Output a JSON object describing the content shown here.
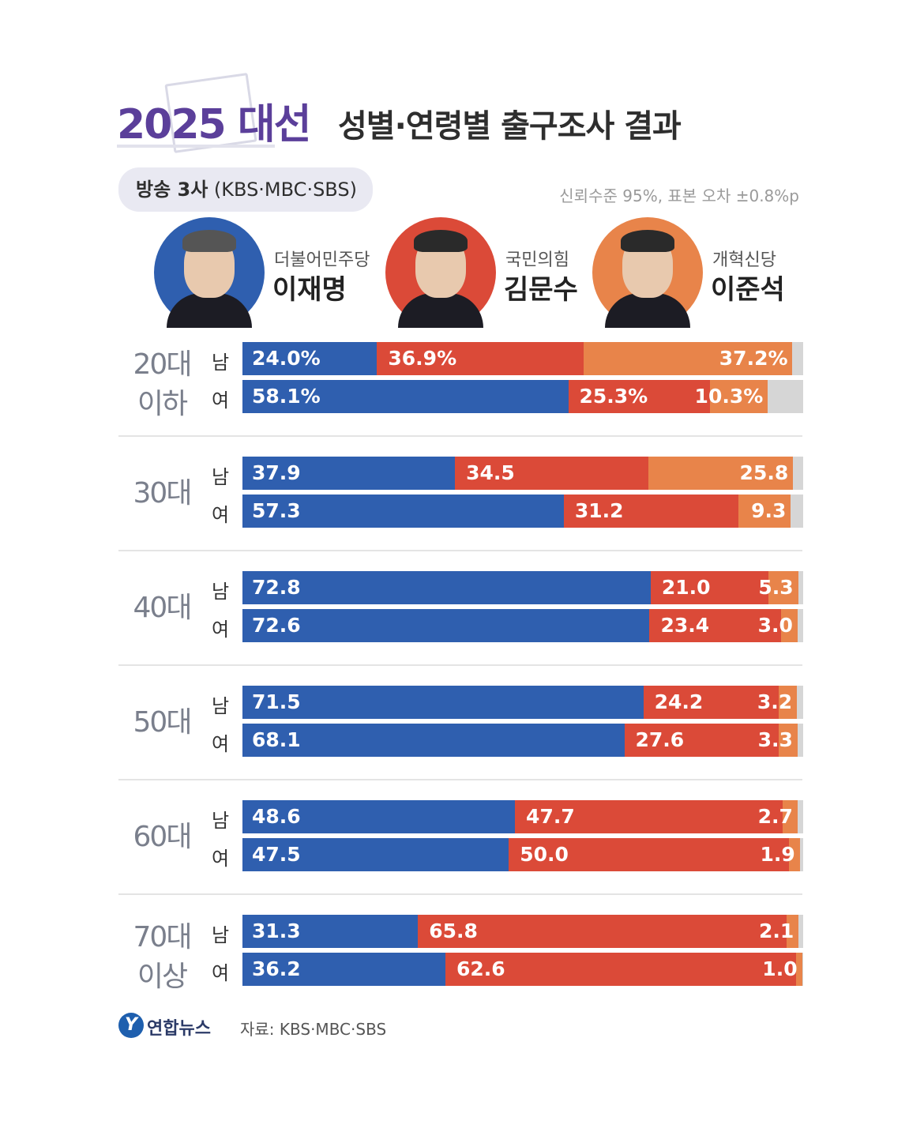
{
  "title": {
    "year": "2025 대선",
    "main": "성별·연령별 출구조사 결과"
  },
  "source_pill": {
    "bold": "방송 3사",
    "rest": " (KBS·MBC·SBS)"
  },
  "note": "신뢰수준 95%, 표본 오차 ±0.8%p",
  "colors": {
    "lee_jm": "#2f5faf",
    "kim_ms": "#db4a38",
    "lee_js": "#e8844a",
    "other": "#d6d6d6"
  },
  "candidates": [
    {
      "party": "더불어민주당",
      "name": "이재명",
      "color": "#2f5faf"
    },
    {
      "party": "국민의힘",
      "name": "김문수",
      "color": "#db4a38"
    },
    {
      "party": "개혁신당",
      "name": "이준석",
      "color": "#e8844a"
    }
  ],
  "chart_data": {
    "type": "bar",
    "stacked": true,
    "orientation": "horizontal",
    "series_names": [
      "이재명",
      "김문수",
      "이준석"
    ],
    "groups": [
      {
        "age": [
          "20대",
          "이하"
        ],
        "rows": [
          {
            "sex": "남",
            "values": [
              24.0,
              36.9,
              37.2
            ],
            "labels": [
              "24.0%",
              "36.9%",
              "37.2%"
            ]
          },
          {
            "sex": "여",
            "values": [
              58.1,
              25.3,
              10.3
            ],
            "labels": [
              "58.1%",
              "25.3%",
              "10.3%"
            ]
          }
        ]
      },
      {
        "age": [
          "30대"
        ],
        "rows": [
          {
            "sex": "남",
            "values": [
              37.9,
              34.5,
              25.8
            ],
            "labels": [
              "37.9",
              "34.5",
              "25.8"
            ]
          },
          {
            "sex": "여",
            "values": [
              57.3,
              31.2,
              9.3
            ],
            "labels": [
              "57.3",
              "31.2",
              "9.3"
            ]
          }
        ]
      },
      {
        "age": [
          "40대"
        ],
        "rows": [
          {
            "sex": "남",
            "values": [
              72.8,
              21.0,
              5.3
            ],
            "labels": [
              "72.8",
              "21.0",
              "5.3"
            ]
          },
          {
            "sex": "여",
            "values": [
              72.6,
              23.4,
              3.0
            ],
            "labels": [
              "72.6",
              "23.4",
              "3.0"
            ]
          }
        ]
      },
      {
        "age": [
          "50대"
        ],
        "rows": [
          {
            "sex": "남",
            "values": [
              71.5,
              24.2,
              3.2
            ],
            "labels": [
              "71.5",
              "24.2",
              "3.2"
            ]
          },
          {
            "sex": "여",
            "values": [
              68.1,
              27.6,
              3.3
            ],
            "labels": [
              "68.1",
              "27.6",
              "3.3"
            ]
          }
        ]
      },
      {
        "age": [
          "60대"
        ],
        "rows": [
          {
            "sex": "남",
            "values": [
              48.6,
              47.7,
              2.7
            ],
            "labels": [
              "48.6",
              "47.7",
              "2.7"
            ]
          },
          {
            "sex": "여",
            "values": [
              47.5,
              50.0,
              1.9
            ],
            "labels": [
              "47.5",
              "50.0",
              "1.9"
            ]
          }
        ]
      },
      {
        "age": [
          "70대",
          "이상"
        ],
        "rows": [
          {
            "sex": "남",
            "values": [
              31.3,
              65.8,
              2.1
            ],
            "labels": [
              "31.3",
              "65.8",
              "2.1"
            ]
          },
          {
            "sex": "여",
            "values": [
              36.2,
              62.6,
              1.0
            ],
            "labels": [
              "36.2",
              "62.6",
              "1.0"
            ]
          }
        ]
      }
    ],
    "xlim": [
      0,
      100
    ]
  },
  "footer": {
    "logo_glyph": "Y",
    "brand": "연합뉴스",
    "source": "자료: KBS·MBC·SBS"
  }
}
